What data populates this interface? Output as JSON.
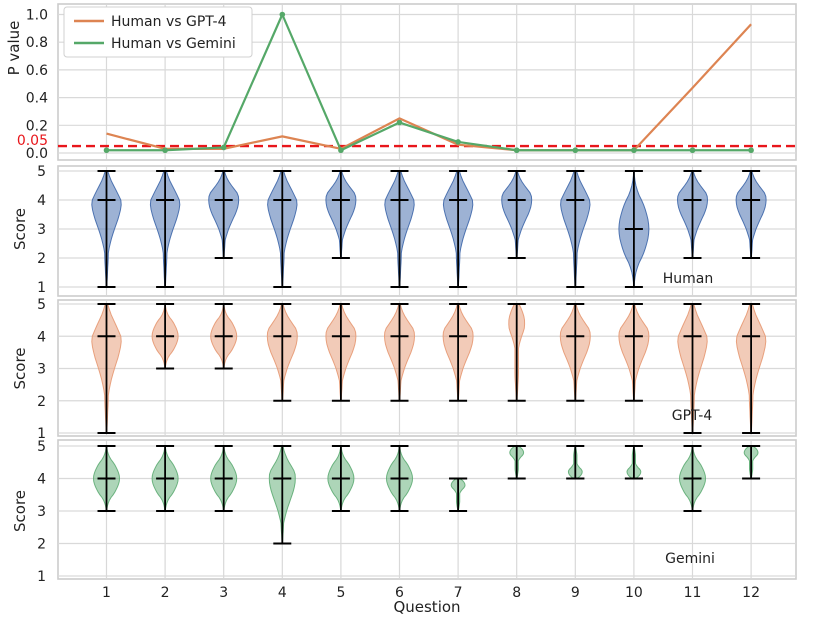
{
  "figure": {
    "x_axis_label": "Question",
    "categories": [
      "1",
      "2",
      "3",
      "4",
      "5",
      "6",
      "7",
      "8",
      "9",
      "10",
      "11",
      "12"
    ]
  },
  "colors": {
    "gpt4_line": "#dd8452",
    "gemini_line": "#55a868",
    "threshold": "#e8161b",
    "human_violin": "#4c72b0",
    "gpt4_violin": "#e8a07d",
    "gemini_violin": "#6ab27e",
    "grid": "#d9d9d9",
    "frame": "#cccccc",
    "whisker": "#000000"
  },
  "chart_data": [
    {
      "type": "line",
      "title": "",
      "xlabel": "",
      "ylabel": "P value",
      "ylim": [
        0,
        1.0
      ],
      "y_ticks": [
        "0.0",
        "0.2",
        "0.4",
        "0.6",
        "0.8",
        "1.0"
      ],
      "x": [
        1,
        2,
        3,
        4,
        5,
        6,
        7,
        8,
        9,
        10,
        11,
        12
      ],
      "series": [
        {
          "name": "Human vs GPT-4",
          "color": "#dd8452",
          "values": [
            0.14,
            0.03,
            0.03,
            0.12,
            0.03,
            0.25,
            0.06,
            0.02,
            0.02,
            0.02,
            0.47,
            0.93
          ]
        },
        {
          "name": "Human vs Gemini",
          "color": "#55a868",
          "values": [
            0.02,
            0.02,
            0.04,
            1.0,
            0.02,
            0.22,
            0.08,
            0.02,
            0.02,
            0.02,
            0.02,
            0.02
          ]
        }
      ],
      "threshold": {
        "value": 0.05,
        "label": "0.05"
      },
      "legend": {
        "position": "top-left",
        "entries": [
          "Human vs GPT-4",
          "Human vs Gemini"
        ]
      }
    },
    {
      "type": "violin",
      "label": "Human",
      "ylabel": "Score",
      "ylim": [
        1,
        5
      ],
      "y_ticks": [
        "1",
        "2",
        "3",
        "4",
        "5"
      ],
      "categories": [
        "1",
        "2",
        "3",
        "4",
        "5",
        "6",
        "7",
        "8",
        "9",
        "10",
        "11",
        "12"
      ],
      "min": [
        1,
        1,
        2,
        1,
        2,
        1,
        1,
        2,
        1,
        1,
        2,
        2
      ],
      "median": [
        4,
        4,
        4,
        4,
        4,
        4,
        4,
        4,
        4,
        3,
        4,
        4
      ],
      "max": [
        5,
        5,
        5,
        5,
        5,
        5,
        5,
        5,
        5,
        5,
        5,
        5
      ]
    },
    {
      "type": "violin",
      "label": "GPT-4",
      "ylabel": "Score",
      "ylim": [
        1,
        5
      ],
      "y_ticks": [
        "1",
        "2",
        "3",
        "4",
        "5"
      ],
      "categories": [
        "1",
        "2",
        "3",
        "4",
        "5",
        "6",
        "7",
        "8",
        "9",
        "10",
        "11",
        "12"
      ],
      "min": [
        1,
        3,
        3,
        2,
        2,
        2,
        2,
        2,
        2,
        2,
        1,
        1
      ],
      "median": [
        4,
        4,
        4,
        4,
        4,
        4,
        4,
        5,
        4,
        4,
        4,
        4
      ],
      "max": [
        5,
        5,
        5,
        5,
        5,
        5,
        5,
        5,
        5,
        5,
        5,
        5
      ]
    },
    {
      "type": "violin",
      "label": "Gemini",
      "ylabel": "Score",
      "ylim": [
        1,
        5
      ],
      "y_ticks": [
        "1",
        "2",
        "3",
        "4",
        "5"
      ],
      "categories": [
        "1",
        "2",
        "3",
        "4",
        "5",
        "6",
        "7",
        "8",
        "9",
        "10",
        "11",
        "12"
      ],
      "min": [
        3,
        3,
        3,
        2,
        3,
        3,
        3,
        4,
        4,
        4,
        3,
        4
      ],
      "median": [
        4,
        4,
        4,
        4,
        4,
        4,
        4,
        5,
        4,
        4,
        4,
        5
      ],
      "max": [
        5,
        5,
        5,
        5,
        5,
        5,
        4,
        5,
        5,
        5,
        5,
        5
      ]
    }
  ]
}
